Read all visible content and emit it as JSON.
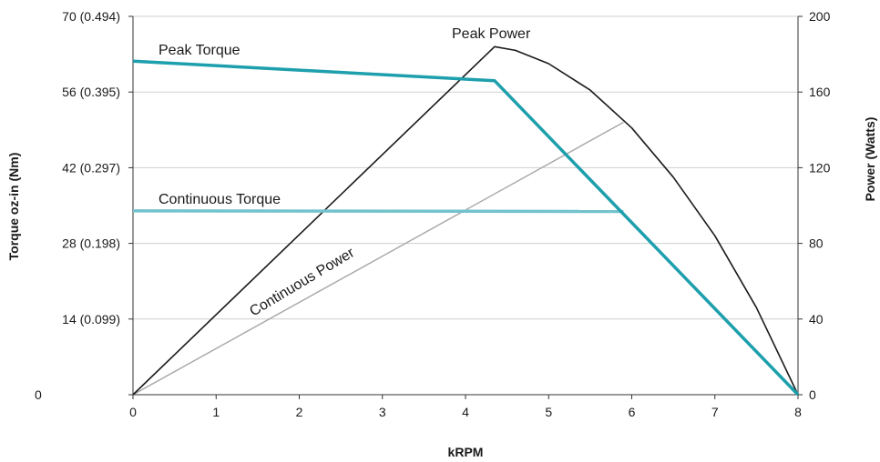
{
  "chart_data": {
    "type": "line",
    "xlabel": "kRPM",
    "ylabel_left": "Torque oz-in (Nm)",
    "ylabel_right": "Power (Watts)",
    "x_ticks": [
      "0",
      "1",
      "2",
      "3",
      "4",
      "5",
      "6",
      "7",
      "8"
    ],
    "xlim": [
      0,
      8
    ],
    "y_left_ticks": [
      {
        "value": 0,
        "label": "0"
      },
      {
        "value": 14,
        "label": "14 (0.099)"
      },
      {
        "value": 28,
        "label": "28 (0.198)"
      },
      {
        "value": 42,
        "label": "42 (0.297)"
      },
      {
        "value": 56,
        "label": "56 (0.395)"
      },
      {
        "value": 70,
        "label": "70 (0.494)"
      }
    ],
    "ylim_left": [
      0,
      70
    ],
    "y_right_ticks": [
      {
        "value": 0,
        "label": "0"
      },
      {
        "value": 40,
        "label": "40"
      },
      {
        "value": 80,
        "label": "80"
      },
      {
        "value": 120,
        "label": "120"
      },
      {
        "value": 160,
        "label": "160"
      },
      {
        "value": 200,
        "label": "200"
      }
    ],
    "ylim_right": [
      0,
      200
    ],
    "grid": true,
    "series": [
      {
        "name": "Peak Torque",
        "axis": "left",
        "color": "#1e9fad",
        "x": [
          0,
          4.35,
          8
        ],
        "y": [
          61.7,
          58.1,
          0
        ]
      },
      {
        "name": "Continuous Torque",
        "axis": "left",
        "color": "#72c3cd",
        "x": [
          0,
          5.9
        ],
        "y": [
          34.0,
          33.9
        ]
      },
      {
        "name": "Peak Power",
        "axis": "right",
        "color": "#1a1a1a",
        "x": [
          0,
          4.35,
          4.6,
          5.0,
          5.5,
          6.0,
          6.5,
          7.0,
          7.5,
          8.0
        ],
        "y": [
          0,
          184,
          182,
          175,
          161,
          141,
          115,
          84,
          46,
          0
        ]
      },
      {
        "name": "Continuous Power",
        "axis": "right",
        "color": "#a6a6a6",
        "x": [
          0,
          5.9
        ],
        "y": [
          0,
          144
        ]
      }
    ]
  },
  "annotations": {
    "peak_torque": "Peak Torque",
    "peak_power": "Peak Power",
    "continuous_torque": "Continuous Torque",
    "continuous_power": "Continuous Power"
  }
}
